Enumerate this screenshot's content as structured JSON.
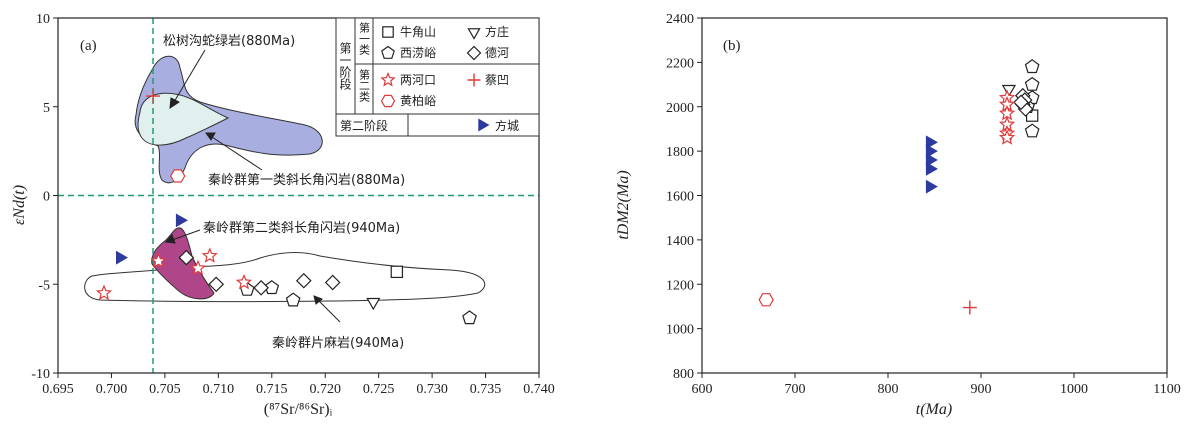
{
  "chart_data": [
    {
      "type": "scatter",
      "panel_label": "(a)",
      "xlabel": "(⁸⁷Sr/⁸⁶Sr)ᵢ",
      "ylabel": "εNd(t)",
      "xlim": [
        0.695,
        0.74
      ],
      "ylim": [
        -10,
        10
      ],
      "x_ticks": [
        "0.695",
        "0.700",
        "0.705",
        "0.710",
        "0.715",
        "0.720",
        "0.725",
        "0.730",
        "0.735",
        "0.740"
      ],
      "y_ticks": [
        "10",
        "5",
        "0",
        "-5",
        "-10"
      ],
      "reference_lines": {
        "x": 0.7042,
        "y": 0
      },
      "colors": {
        "red": "#e03a3a",
        "blue": "#2d3a9e",
        "purple_fill": "#a9aee0",
        "light_fill": "#dff0ee",
        "magenta_fill": "#b0468a",
        "green_line": "#1e9e6e"
      },
      "legend": {
        "phase1_header": "第一阶段",
        "class1": "第一类",
        "class2": "第二类",
        "phase2": "第二阶段",
        "entries": [
          {
            "name": "牛角山",
            "marker": "square",
            "color": "#222222"
          },
          {
            "name": "方庄",
            "marker": "triangle-down",
            "color": "#222222"
          },
          {
            "name": "西涝峪",
            "marker": "pentagon",
            "color": "#222222"
          },
          {
            "name": "德河",
            "marker": "diamond",
            "color": "#222222"
          },
          {
            "name": "两河口",
            "marker": "star",
            "color": "#e03a3a"
          },
          {
            "name": "蔡凹",
            "marker": "plus",
            "color": "#e03a3a"
          },
          {
            "name": "黄柏峪",
            "marker": "hexagon",
            "color": "#e03a3a"
          },
          {
            "name": "方城",
            "marker": "triangle-right",
            "color": "#2d3a9e"
          }
        ]
      },
      "annotations": [
        "松树沟蛇绿岩(880Ma)",
        "秦岭群第一类斜长角闪岩(880Ma)",
        "秦岭群第二类斜长角闪岩(940Ma)",
        "秦岭群片麻岩(940Ma)"
      ],
      "series": [
        {
          "name": "牛角山",
          "marker": "square",
          "points": [
            [
              0.7267,
              -4.3
            ]
          ]
        },
        {
          "name": "方庄",
          "marker": "triangle-down",
          "points": [
            [
              0.7245,
              -6.0
            ]
          ]
        },
        {
          "name": "西涝峪",
          "marker": "pentagon",
          "points": [
            [
              0.7127,
              -5.3
            ],
            [
              0.715,
              -5.2
            ],
            [
              0.717,
              -5.9
            ],
            [
              0.7335,
              -6.9
            ]
          ]
        },
        {
          "name": "德河",
          "marker": "diamond",
          "points": [
            [
              0.707,
              -3.5
            ],
            [
              0.7098,
              -5.0
            ],
            [
              0.714,
              -5.2
            ],
            [
              0.718,
              -4.8
            ],
            [
              0.7207,
              -4.9
            ]
          ]
        },
        {
          "name": "两河口",
          "marker": "star",
          "points": [
            [
              0.6993,
              -5.5
            ],
            [
              0.7044,
              -3.7
            ],
            [
              0.7081,
              -4.1
            ],
            [
              0.7092,
              -3.4
            ],
            [
              0.7124,
              -4.9
            ]
          ]
        },
        {
          "name": "蔡凹",
          "marker": "plus",
          "points": [
            [
              0.7039,
              5.6
            ]
          ]
        },
        {
          "name": "黄柏峪",
          "marker": "hexagon",
          "points": [
            [
              0.7062,
              1.1
            ]
          ]
        },
        {
          "name": "方城",
          "marker": "triangle-right",
          "points": [
            [
              0.7008,
              -3.5
            ],
            [
              0.7064,
              -1.4
            ]
          ]
        }
      ]
    },
    {
      "type": "scatter",
      "panel_label": "(b)",
      "xlabel": "t(Ma)",
      "ylabel": "tDM2(Ma)",
      "xlim": [
        600,
        1100
      ],
      "ylim": [
        800,
        2400
      ],
      "x_ticks": [
        "600",
        "700",
        "800",
        "900",
        "1000",
        "1100"
      ],
      "y_ticks": [
        "800",
        "1000",
        "1200",
        "1400",
        "1600",
        "1800",
        "2000",
        "2200",
        "2400"
      ],
      "series": [
        {
          "name": "牛角山",
          "marker": "square",
          "points": [
            [
              955,
              1960
            ]
          ]
        },
        {
          "name": "方庄",
          "marker": "triangle-down",
          "points": [
            [
              930,
              2080
            ]
          ]
        },
        {
          "name": "西涝峪",
          "marker": "pentagon",
          "points": [
            [
              955,
              2180
            ],
            [
              955,
              2100
            ],
            [
              955,
              2040
            ],
            [
              955,
              1890
            ],
            [
              950,
              2000
            ]
          ]
        },
        {
          "name": "德河",
          "marker": "diamond",
          "points": [
            [
              945,
              2050
            ],
            [
              947,
              2030
            ],
            [
              945,
              2010
            ],
            [
              948,
              1990
            ],
            [
              943,
              2020
            ]
          ]
        },
        {
          "name": "两河口",
          "marker": "star",
          "points": [
            [
              928,
              2040
            ],
            [
              928,
              2010
            ],
            [
              928,
              1970
            ],
            [
              928,
              1920
            ],
            [
              928,
              1880
            ],
            [
              928,
              1860
            ]
          ]
        },
        {
          "name": "蔡凹",
          "marker": "plus",
          "points": [
            [
              888,
              1095
            ]
          ]
        },
        {
          "name": "黄柏峪",
          "marker": "hexagon",
          "points": [
            [
              669,
              1130
            ]
          ]
        },
        {
          "name": "方城",
          "marker": "triangle-right",
          "points": [
            [
              845,
              1840
            ],
            [
              845,
              1800
            ],
            [
              845,
              1760
            ],
            [
              845,
              1720
            ],
            [
              845,
              1640
            ]
          ]
        }
      ]
    }
  ]
}
